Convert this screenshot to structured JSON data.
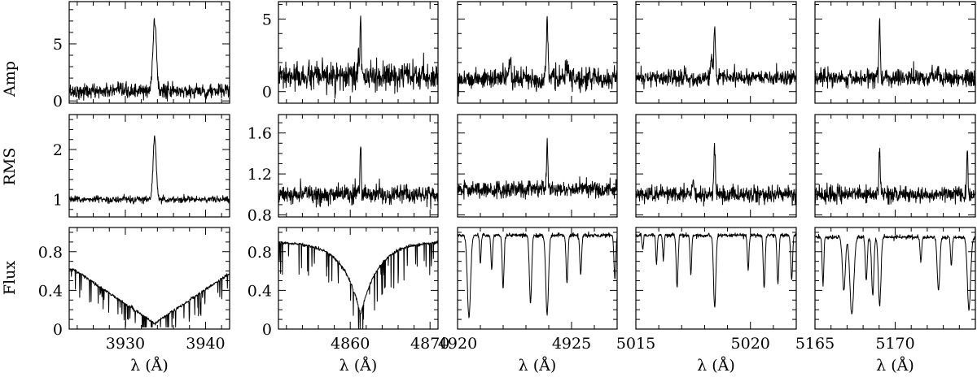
{
  "chart_data": {
    "type": "line",
    "layout": "3 rows x 5 columns of spectral panels",
    "row_labels": [
      "Amp",
      "RMS",
      "Flux"
    ],
    "xlabel": "λ (Å)",
    "columns": [
      {
        "x_range": [
          3923.0,
          3943.0
        ],
        "x_ticks": [
          3930,
          3940
        ],
        "x_minor_step": 2,
        "x_tick_labels": [
          "3930",
          "3940"
        ],
        "rows": {
          "Amp": {
            "y_range": [
              -0.2,
              8.7
            ],
            "y_ticks": [
              0,
              5
            ],
            "y_tick_labels": [
              "0",
              "5"
            ],
            "y_minor_step": 1,
            "baseline": 0.85,
            "noise": 0.32,
            "lines": [
              {
                "center": 3933.66,
                "height": 6.2,
                "width": 0.22
              }
            ]
          },
          "RMS": {
            "y_range": [
              0.65,
              2.7
            ],
            "y_ticks": [
              1,
              2
            ],
            "y_tick_labels": [
              "1",
              "2"
            ],
            "y_minor_step": 0.2,
            "baseline": 1.0,
            "noise": 0.035,
            "lines": [
              {
                "center": 3933.66,
                "height": 1.22,
                "width": 0.2
              }
            ]
          },
          "Flux": {
            "y_range": [
              0.0,
              1.05
            ],
            "y_ticks": [
              0,
              0.4,
              0.8
            ],
            "y_tick_labels": [
              "0",
              "0.4",
              "0.8"
            ],
            "y_minor_step": 0.1,
            "continuum": "broad V-shaped Ca II K profile",
            "lines": [
              {
                "center": 3933.66,
                "depth": 0.0,
                "width": 0.0
              }
            ]
          }
        }
      },
      {
        "x_range": [
          4851.0,
          4871.0
        ],
        "x_ticks": [
          4860,
          4870
        ],
        "x_minor_step": 2,
        "x_tick_labels": [
          "4860",
          "4870"
        ],
        "rows": {
          "Amp": {
            "y_range": [
              -0.8,
              6.2
            ],
            "y_ticks": [
              0,
              5
            ],
            "y_tick_labels": [
              "0",
              "5"
            ],
            "y_minor_step": 1,
            "baseline": 1.0,
            "noise": 0.45,
            "lines": [
              {
                "center": 4861.3,
                "height": 3.9,
                "width": 0.08
              },
              {
                "center": 4861.0,
                "height": 1.2,
                "width": 0.1
              }
            ]
          },
          "RMS": {
            "y_range": [
              0.78,
              1.78
            ],
            "y_ticks": [
              0.8,
              1.2,
              1.6
            ],
            "y_tick_labels": [
              "0.8",
              "1.2",
              "1.6"
            ],
            "y_minor_step": 0.1,
            "baseline": 1.0,
            "noise": 0.045,
            "lines": [
              {
                "center": 4861.3,
                "height": 0.5,
                "width": 0.08
              }
            ]
          },
          "Flux": {
            "y_range": [
              0.0,
              1.05
            ],
            "y_ticks": [
              0,
              0.4,
              0.8
            ],
            "y_tick_labels": [
              "0",
              "0.4",
              "0.8"
            ],
            "y_minor_step": 0.1,
            "continuum": "broad H-beta profile",
            "lines": [
              {
                "center": 4861.3,
                "depth": 0.0,
                "width": 0.0
              }
            ]
          }
        }
      },
      {
        "x_range": [
          4920.0,
          4927.0
        ],
        "x_ticks": [
          4920,
          4925
        ],
        "x_minor_step": 1,
        "x_tick_labels": [
          "4920",
          "4925"
        ],
        "rows": {
          "Amp": {
            "y_range": [
              -0.8,
              6.2
            ],
            "y_ticks": [
              0,
              5
            ],
            "y_tick_labels": [
              "",
              ""
            ],
            "y_minor_step": 1,
            "baseline": 0.9,
            "noise": 0.35,
            "lines": [
              {
                "center": 4923.93,
                "height": 4.3,
                "width": 0.035
              },
              {
                "center": 4922.3,
                "height": 1.0,
                "width": 0.05
              },
              {
                "center": 4924.8,
                "height": 0.8,
                "width": 0.05
              }
            ]
          },
          "RMS": {
            "y_range": [
              0.78,
              1.78
            ],
            "y_ticks": [
              0.8,
              1.2,
              1.6
            ],
            "y_tick_labels": [
              "",
              "",
              ""
            ],
            "y_minor_step": 0.1,
            "baseline": 1.05,
            "noise": 0.04,
            "lines": [
              {
                "center": 4923.93,
                "height": 0.45,
                "width": 0.03
              }
            ]
          },
          "Flux": {
            "y_range": [
              0.0,
              1.05
            ],
            "y_ticks": [
              0,
              0.4,
              0.8
            ],
            "y_tick_labels": [
              "",
              "",
              ""
            ],
            "y_minor_step": 0.1,
            "continuum": 0.97,
            "lines": [
              {
                "center": 4920.5,
                "depth": 0.85,
                "width": 0.07
              },
              {
                "center": 4921.0,
                "depth": 0.3,
                "width": 0.03
              },
              {
                "center": 4921.5,
                "depth": 0.35,
                "width": 0.035
              },
              {
                "center": 4922.0,
                "depth": 0.55,
                "width": 0.04
              },
              {
                "center": 4923.2,
                "depth": 0.7,
                "width": 0.05
              },
              {
                "center": 4923.93,
                "depth": 0.82,
                "width": 0.06
              },
              {
                "center": 4924.8,
                "depth": 0.5,
                "width": 0.04
              },
              {
                "center": 4925.4,
                "depth": 0.4,
                "width": 0.04
              },
              {
                "center": 4926.9,
                "depth": 0.45,
                "width": 0.04
              }
            ]
          }
        }
      },
      {
        "x_range": [
          5015.0,
          5022.0
        ],
        "x_ticks": [
          5015,
          5020
        ],
        "x_minor_step": 1,
        "x_tick_labels": [
          "5015",
          "5020"
        ],
        "rows": {
          "Amp": {
            "y_range": [
              -0.8,
              6.2
            ],
            "y_ticks": [
              0,
              5
            ],
            "y_tick_labels": [
              "",
              ""
            ],
            "y_minor_step": 1,
            "baseline": 0.95,
            "noise": 0.28,
            "lines": [
              {
                "center": 5018.44,
                "height": 3.6,
                "width": 0.035
              },
              {
                "center": 5018.3,
                "height": 1.4,
                "width": 0.04
              }
            ]
          },
          "RMS": {
            "y_range": [
              0.78,
              1.78
            ],
            "y_ticks": [
              0.8,
              1.2,
              1.6
            ],
            "y_tick_labels": [
              "",
              "",
              ""
            ],
            "y_minor_step": 0.1,
            "baseline": 1.0,
            "noise": 0.04,
            "lines": [
              {
                "center": 5018.44,
                "height": 0.5,
                "width": 0.03
              },
              {
                "center": 5017.5,
                "height": 0.15,
                "width": 0.04
              }
            ]
          },
          "Flux": {
            "y_range": [
              0.0,
              1.05
            ],
            "y_ticks": [
              0,
              0.4,
              0.8
            ],
            "y_tick_labels": [
              "",
              "",
              ""
            ],
            "y_minor_step": 0.1,
            "continuum": 0.97,
            "lines": [
              {
                "center": 5015.3,
                "depth": 0.15,
                "width": 0.03
              },
              {
                "center": 5015.9,
                "depth": 0.3,
                "width": 0.03
              },
              {
                "center": 5016.2,
                "depth": 0.25,
                "width": 0.03
              },
              {
                "center": 5016.8,
                "depth": 0.55,
                "width": 0.04
              },
              {
                "center": 5017.4,
                "depth": 0.4,
                "width": 0.035
              },
              {
                "center": 5018.44,
                "depth": 0.75,
                "width": 0.05
              },
              {
                "center": 5019.9,
                "depth": 0.35,
                "width": 0.035
              },
              {
                "center": 5020.6,
                "depth": 0.55,
                "width": 0.04
              },
              {
                "center": 5021.2,
                "depth": 0.5,
                "width": 0.04
              },
              {
                "center": 5021.8,
                "depth": 0.45,
                "width": 0.04
              }
            ]
          }
        }
      },
      {
        "x_range": [
          5165.0,
          5175.0
        ],
        "x_ticks": [
          5165,
          5170
        ],
        "x_minor_step": 1,
        "x_tick_labels": [
          "5165",
          "5170"
        ],
        "rows": {
          "Amp": {
            "y_range": [
              -0.8,
              6.2
            ],
            "y_ticks": [
              0,
              5
            ],
            "y_tick_labels": [
              "",
              ""
            ],
            "y_minor_step": 1,
            "baseline": 0.9,
            "noise": 0.3,
            "lines": [
              {
                "center": 5169.03,
                "height": 4.0,
                "width": 0.045
              },
              {
                "center": 5172.7,
                "height": 0.6,
                "width": 0.06
              }
            ]
          },
          "RMS": {
            "y_range": [
              0.78,
              1.78
            ],
            "y_ticks": [
              0.8,
              1.2,
              1.6
            ],
            "y_tick_labels": [
              "",
              "",
              ""
            ],
            "y_minor_step": 0.1,
            "baseline": 1.0,
            "noise": 0.04,
            "lines": [
              {
                "center": 5169.03,
                "height": 0.45,
                "width": 0.04
              },
              {
                "center": 5174.5,
                "height": 0.4,
                "width": 0.04
              }
            ]
          },
          "Flux": {
            "y_range": [
              0.0,
              1.05
            ],
            "y_ticks": [
              0,
              0.4,
              0.8
            ],
            "y_tick_labels": [
              "",
              "",
              ""
            ],
            "y_minor_step": 0.1,
            "continuum": 0.95,
            "lines": [
              {
                "center": 5165.5,
                "depth": 0.5,
                "width": 0.05
              },
              {
                "center": 5166.8,
                "depth": 0.55,
                "width": 0.09
              },
              {
                "center": 5167.3,
                "depth": 0.8,
                "width": 0.12
              },
              {
                "center": 5168.2,
                "depth": 0.45,
                "width": 0.06
              },
              {
                "center": 5168.6,
                "depth": 0.6,
                "width": 0.07
              },
              {
                "center": 5169.03,
                "depth": 0.7,
                "width": 0.08
              },
              {
                "center": 5171.6,
                "depth": 0.25,
                "width": 0.05
              },
              {
                "center": 5172.7,
                "depth": 0.55,
                "width": 0.08
              },
              {
                "center": 5173.5,
                "depth": 0.3,
                "width": 0.05
              },
              {
                "center": 5174.6,
                "depth": 0.75,
                "width": 0.1
              }
            ]
          }
        }
      }
    ]
  }
}
